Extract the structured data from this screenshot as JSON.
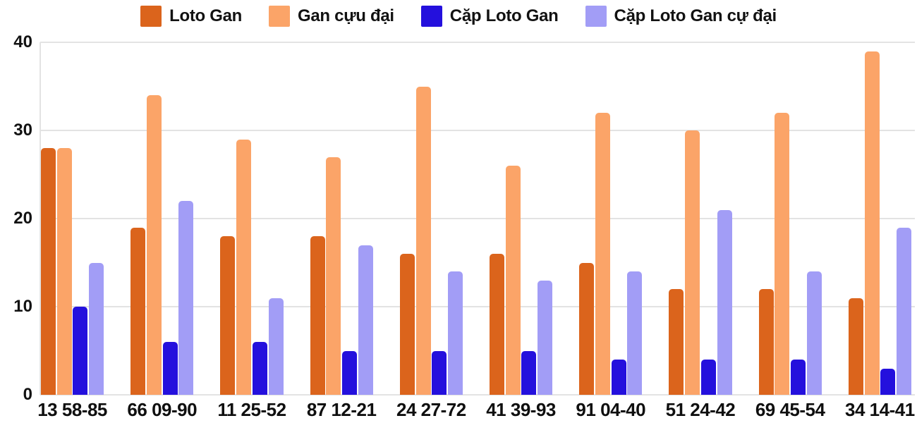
{
  "chart_data": {
    "type": "bar",
    "title": "",
    "xlabel": "",
    "ylabel": "",
    "ylim": [
      0,
      40
    ],
    "yticks": [
      0,
      10,
      20,
      30,
      40
    ],
    "grid": true,
    "legend_position": "top",
    "categories": [
      "13 58-85",
      "66 09-90",
      "11 25-52",
      "87 12-21",
      "24 27-72",
      "41 39-93",
      "91 04-40",
      "51 24-42",
      "69 45-54",
      "34 14-41"
    ],
    "series": [
      {
        "name": "Loto Gan",
        "color": "#db641c",
        "values": [
          28,
          19,
          18,
          18,
          16,
          16,
          15,
          12,
          12,
          11
        ]
      },
      {
        "name": "Gan cựu đại",
        "color": "#fba468",
        "values": [
          28,
          34,
          29,
          27,
          35,
          26,
          32,
          30,
          32,
          39
        ]
      },
      {
        "name": "Cặp Loto Gan",
        "color": "#2410dd",
        "values": [
          10,
          6,
          6,
          5,
          5,
          5,
          4,
          4,
          4,
          3
        ]
      },
      {
        "name": "Cặp Loto Gan cự đại",
        "color": "#a29df6",
        "values": [
          15,
          22,
          11,
          17,
          14,
          13,
          14,
          21,
          14,
          19
        ]
      }
    ]
  },
  "colors": {
    "background": "#ffffff",
    "gridline": "#e3e3e3",
    "text": "#121212"
  }
}
